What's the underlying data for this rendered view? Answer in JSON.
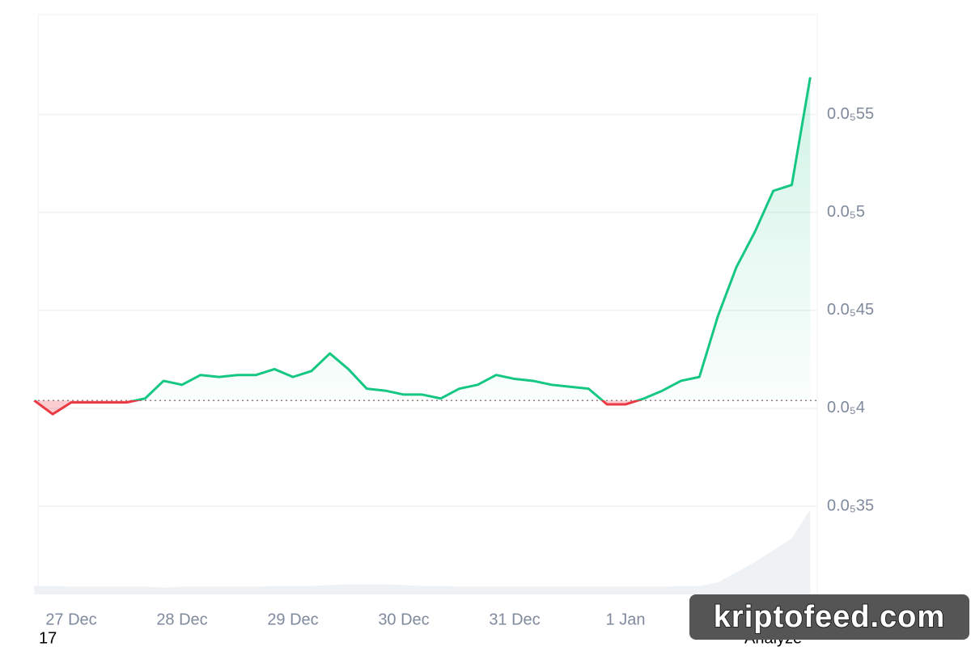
{
  "chart_data": {
    "type": "line",
    "categories": [
      null,
      null,
      "27 Dec",
      null,
      null,
      null,
      null,
      null,
      "28 Dec",
      null,
      null,
      null,
      null,
      null,
      "29 Dec",
      null,
      null,
      null,
      null,
      null,
      "30 Dec",
      null,
      null,
      null,
      null,
      null,
      "31 Dec",
      null,
      null,
      null,
      null,
      null,
      "1 Jan",
      null,
      null,
      null,
      null,
      null,
      null,
      null,
      null,
      null,
      null
    ],
    "series": [
      {
        "values": [
          4.04e-07,
          3.97e-07,
          4.03e-07,
          4.03e-07,
          4.03e-07,
          4.03e-07,
          4.05e-07,
          4.14e-07,
          4.12e-07,
          4.17e-07,
          4.16e-07,
          4.17e-07,
          4.17e-07,
          4.2e-07,
          4.16e-07,
          4.19e-07,
          4.28e-07,
          4.2e-07,
          4.1e-07,
          4.09e-07,
          4.07e-07,
          4.07e-07,
          4.05e-07,
          4.1e-07,
          4.12e-07,
          4.17e-07,
          4.15e-07,
          4.14e-07,
          4.12e-07,
          4.11e-07,
          4.1e-07,
          4.02e-07,
          4.02e-07,
          4.05e-07,
          4.09e-07,
          4.14e-07,
          4.16e-07,
          4.47e-07,
          4.72e-07,
          4.9e-07,
          5.11e-07,
          5.14e-07,
          5.69e-07
        ]
      }
    ],
    "up_color": "#16c784",
    "down_color": "#ea3943",
    "reference_line": 4.04e-07,
    "volume": [
      10,
      10,
      9,
      9,
      9,
      9,
      9,
      8,
      9,
      9,
      9,
      9,
      9,
      10,
      10,
      10,
      11,
      12,
      12,
      12,
      11,
      10,
      10,
      9,
      9,
      9,
      9,
      9,
      9,
      9,
      9,
      9,
      9,
      9,
      9,
      10,
      10,
      14,
      26,
      38,
      52,
      66,
      100
    ],
    "volume_color": "#eff2f5",
    "ylim": [
      3.05e-07,
      6.01e-07
    ],
    "yticks": [
      {
        "value": 3.5e-07,
        "label": "0.0₅35"
      },
      {
        "value": 4e-07,
        "label": "0.0₅4"
      },
      {
        "value": 4.5e-07,
        "label": "0.0₅45"
      },
      {
        "value": 5e-07,
        "label": "0.0₅5"
      },
      {
        "value": 5.5e-07,
        "label": "0.0₅55"
      }
    ],
    "grid": true
  },
  "footer_left": "17",
  "footer_right": "Analyze",
  "watermark": "kriptofeed.com"
}
